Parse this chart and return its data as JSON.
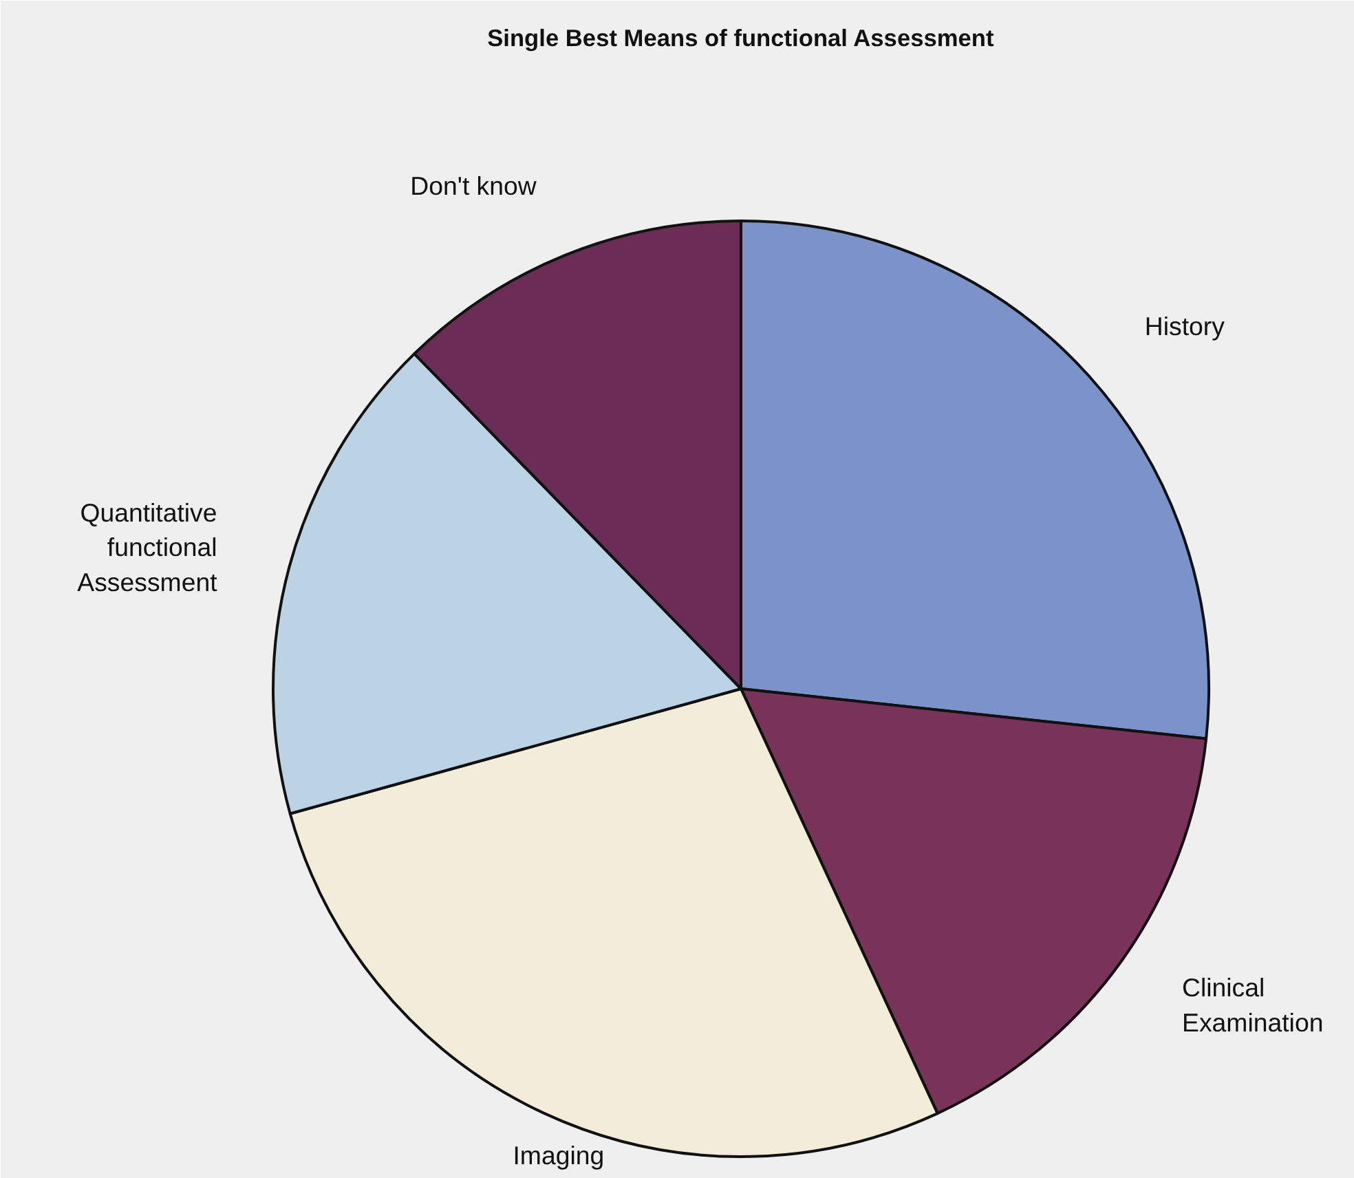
{
  "chart_data": {
    "type": "pie",
    "title": "Single Best Means of functional Assessment",
    "categories": [
      "History",
      "Clinical\nExamination",
      "Imaging",
      "Quantitative\nfunctional\nAssessment",
      "Don't know"
    ],
    "values": [
      26.7,
      16.4,
      27.6,
      17.0,
      12.3
    ],
    "colors": [
      "#7b93c9",
      "#7a3358",
      "#f3ecd8",
      "#bcd3e6",
      "#6b2d55"
    ],
    "legend": false
  }
}
